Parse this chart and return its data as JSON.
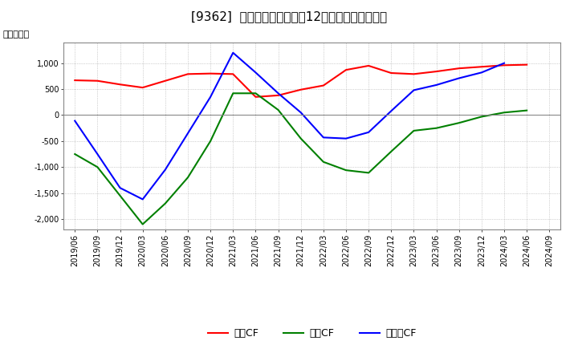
{
  "title": "[9362]  キャッシュフローの12か月移動合計の推移",
  "ylabel": "（百万円）",
  "x_labels": [
    "2019/06",
    "2019/09",
    "2019/12",
    "2020/03",
    "2020/06",
    "2020/09",
    "2020/12",
    "2021/03",
    "2021/06",
    "2021/09",
    "2021/12",
    "2022/03",
    "2022/06",
    "2022/09",
    "2022/12",
    "2023/03",
    "2023/06",
    "2023/09",
    "2023/12",
    "2024/03",
    "2024/06",
    "2024/09"
  ],
  "operating_cf": [
    670,
    660,
    590,
    530,
    660,
    790,
    800,
    790,
    350,
    380,
    490,
    570,
    870,
    950,
    810,
    790,
    840,
    900,
    930,
    960,
    970,
    null
  ],
  "investing_cf": [
    -750,
    -1000,
    -1550,
    -2100,
    -1700,
    -1200,
    -500,
    420,
    420,
    100,
    -450,
    -900,
    -1060,
    -1110,
    -700,
    -300,
    -250,
    -150,
    -30,
    50,
    90,
    null
  ],
  "free_cf": [
    -110,
    -750,
    -1400,
    -1620,
    -1050,
    -350,
    350,
    1200,
    820,
    420,
    50,
    -430,
    -450,
    -330,
    80,
    480,
    580,
    710,
    820,
    1000,
    null,
    null
  ],
  "operating_color": "#ff0000",
  "investing_color": "#008000",
  "free_color": "#0000ff",
  "ylim": [
    -2200,
    1400
  ],
  "yticks": [
    -2000,
    -1500,
    -1000,
    -500,
    0,
    500,
    1000
  ],
  "background_color": "#ffffff",
  "grid_color": "#aaaaaa",
  "title_fontsize": 11,
  "axis_label_fontsize": 7,
  "tick_fontsize": 7,
  "legend_labels": [
    "営業CF",
    "投資CF",
    "フリーCF"
  ]
}
